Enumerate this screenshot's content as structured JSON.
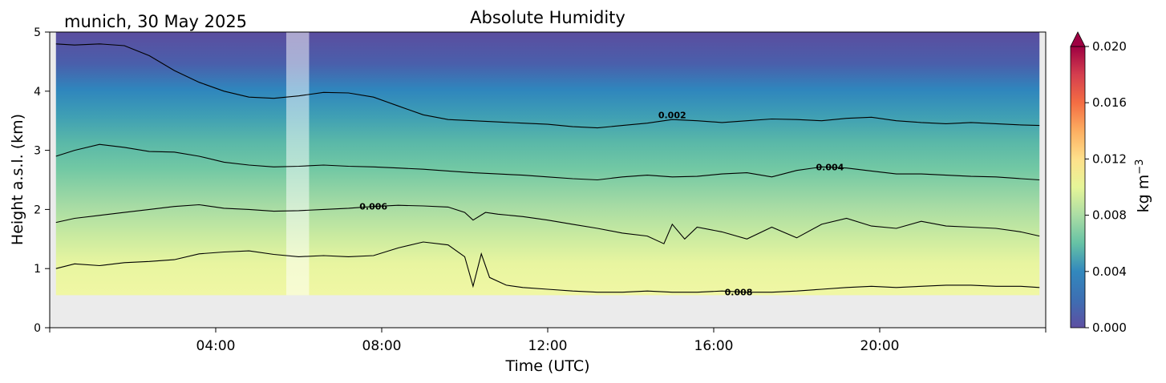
{
  "chart_data": {
    "type": "heatmap",
    "title": "Absolute Humidity",
    "subtitle": "munich, 30 May 2025",
    "xlabel": "Time (UTC)",
    "ylabel": "Height a.s.l. (km)",
    "colorbar_label": "kg m",
    "colorbar_label_exponent": "−3",
    "xlim": [
      0,
      24
    ],
    "ylim": [
      0,
      5
    ],
    "xticks": [
      {
        "value": 4,
        "label": "04:00"
      },
      {
        "value": 8,
        "label": "08:00"
      },
      {
        "value": 12,
        "label": "12:00"
      },
      {
        "value": 16,
        "label": "16:00"
      },
      {
        "value": 20,
        "label": "20:00"
      }
    ],
    "yticks": [
      {
        "value": 0,
        "label": "0"
      },
      {
        "value": 1,
        "label": "1"
      },
      {
        "value": 2,
        "label": "2"
      },
      {
        "value": 3,
        "label": "3"
      },
      {
        "value": 4,
        "label": "4"
      },
      {
        "value": 5,
        "label": "5"
      }
    ],
    "colorbar": {
      "range": [
        0,
        0.02
      ],
      "extend": "max",
      "ticks": [
        {
          "value": 0.0,
          "label": "0.000"
        },
        {
          "value": 0.004,
          "label": "0.004"
        },
        {
          "value": 0.008,
          "label": "0.008"
        },
        {
          "value": 0.012,
          "label": "0.012"
        },
        {
          "value": 0.016,
          "label": "0.016"
        },
        {
          "value": 0.02,
          "label": "0.020"
        }
      ]
    },
    "data_extent": {
      "time": [
        0.15,
        23.85
      ],
      "height_km": [
        0.55,
        5.0
      ]
    },
    "missing_data_gap": {
      "time": [
        5.7,
        6.25
      ]
    },
    "contours": [
      {
        "level": 0.002,
        "label": "0.002",
        "label_at": [
          15.0,
          3.6
        ],
        "points": [
          [
            0.15,
            4.8
          ],
          [
            0.6,
            4.78
          ],
          [
            1.2,
            4.8
          ],
          [
            1.8,
            4.77
          ],
          [
            2.4,
            4.6
          ],
          [
            3.0,
            4.35
          ],
          [
            3.6,
            4.15
          ],
          [
            4.2,
            4.0
          ],
          [
            4.8,
            3.9
          ],
          [
            5.4,
            3.88
          ],
          [
            6.0,
            3.92
          ],
          [
            6.6,
            3.98
          ],
          [
            7.2,
            3.97
          ],
          [
            7.8,
            3.9
          ],
          [
            8.4,
            3.75
          ],
          [
            9.0,
            3.6
          ],
          [
            9.6,
            3.52
          ],
          [
            10.2,
            3.5
          ],
          [
            10.8,
            3.48
          ],
          [
            11.4,
            3.46
          ],
          [
            12.0,
            3.44
          ],
          [
            12.6,
            3.4
          ],
          [
            13.2,
            3.38
          ],
          [
            13.8,
            3.42
          ],
          [
            14.4,
            3.46
          ],
          [
            15.0,
            3.52
          ],
          [
            15.6,
            3.5
          ],
          [
            16.2,
            3.47
          ],
          [
            16.8,
            3.5
          ],
          [
            17.4,
            3.53
          ],
          [
            18.0,
            3.52
          ],
          [
            18.6,
            3.5
          ],
          [
            19.2,
            3.54
          ],
          [
            19.8,
            3.56
          ],
          [
            20.4,
            3.5
          ],
          [
            21.0,
            3.47
          ],
          [
            21.6,
            3.45
          ],
          [
            22.2,
            3.47
          ],
          [
            22.8,
            3.45
          ],
          [
            23.4,
            3.43
          ],
          [
            23.85,
            3.42
          ]
        ]
      },
      {
        "level": 0.004,
        "label": "0.004",
        "label_at": [
          18.8,
          2.72
        ],
        "points": [
          [
            0.15,
            2.9
          ],
          [
            0.6,
            3.0
          ],
          [
            1.2,
            3.1
          ],
          [
            1.8,
            3.05
          ],
          [
            2.4,
            2.98
          ],
          [
            3.0,
            2.97
          ],
          [
            3.6,
            2.9
          ],
          [
            4.2,
            2.8
          ],
          [
            4.8,
            2.75
          ],
          [
            5.4,
            2.72
          ],
          [
            6.0,
            2.73
          ],
          [
            6.6,
            2.75
          ],
          [
            7.2,
            2.73
          ],
          [
            7.8,
            2.72
          ],
          [
            8.4,
            2.7
          ],
          [
            9.0,
            2.68
          ],
          [
            9.6,
            2.65
          ],
          [
            10.2,
            2.62
          ],
          [
            10.8,
            2.6
          ],
          [
            11.4,
            2.58
          ],
          [
            12.0,
            2.55
          ],
          [
            12.6,
            2.52
          ],
          [
            13.2,
            2.5
          ],
          [
            13.8,
            2.55
          ],
          [
            14.4,
            2.58
          ],
          [
            15.0,
            2.55
          ],
          [
            15.6,
            2.56
          ],
          [
            16.2,
            2.6
          ],
          [
            16.8,
            2.62
          ],
          [
            17.4,
            2.55
          ],
          [
            18.0,
            2.66
          ],
          [
            18.6,
            2.72
          ],
          [
            19.2,
            2.7
          ],
          [
            19.8,
            2.65
          ],
          [
            20.4,
            2.6
          ],
          [
            21.0,
            2.6
          ],
          [
            21.6,
            2.58
          ],
          [
            22.2,
            2.56
          ],
          [
            22.8,
            2.55
          ],
          [
            23.4,
            2.52
          ],
          [
            23.85,
            2.5
          ]
        ]
      },
      {
        "level": 0.006,
        "label": "0.006",
        "label_at": [
          7.8,
          2.05
        ],
        "points": [
          [
            0.15,
            1.78
          ],
          [
            0.6,
            1.85
          ],
          [
            1.2,
            1.9
          ],
          [
            1.8,
            1.95
          ],
          [
            2.4,
            2.0
          ],
          [
            3.0,
            2.05
          ],
          [
            3.6,
            2.08
          ],
          [
            4.2,
            2.02
          ],
          [
            4.8,
            2.0
          ],
          [
            5.4,
            1.97
          ],
          [
            6.0,
            1.98
          ],
          [
            6.6,
            2.0
          ],
          [
            7.2,
            2.02
          ],
          [
            7.8,
            2.05
          ],
          [
            8.4,
            2.07
          ],
          [
            9.0,
            2.06
          ],
          [
            9.6,
            2.04
          ],
          [
            10.0,
            1.95
          ],
          [
            10.2,
            1.82
          ],
          [
            10.5,
            1.95
          ],
          [
            10.8,
            1.92
          ],
          [
            11.4,
            1.88
          ],
          [
            12.0,
            1.82
          ],
          [
            12.6,
            1.75
          ],
          [
            13.2,
            1.68
          ],
          [
            13.8,
            1.6
          ],
          [
            14.4,
            1.55
          ],
          [
            14.8,
            1.42
          ],
          [
            15.0,
            1.75
          ],
          [
            15.3,
            1.5
          ],
          [
            15.6,
            1.7
          ],
          [
            16.2,
            1.62
          ],
          [
            16.8,
            1.5
          ],
          [
            17.4,
            1.7
          ],
          [
            18.0,
            1.52
          ],
          [
            18.6,
            1.75
          ],
          [
            19.2,
            1.85
          ],
          [
            19.8,
            1.72
          ],
          [
            20.4,
            1.68
          ],
          [
            21.0,
            1.8
          ],
          [
            21.6,
            1.72
          ],
          [
            22.2,
            1.7
          ],
          [
            22.8,
            1.68
          ],
          [
            23.4,
            1.62
          ],
          [
            23.85,
            1.55
          ]
        ]
      },
      {
        "level": 0.008,
        "label": "0.008",
        "label_at": [
          16.6,
          0.6
        ],
        "points": [
          [
            0.15,
            1.0
          ],
          [
            0.6,
            1.08
          ],
          [
            1.2,
            1.05
          ],
          [
            1.8,
            1.1
          ],
          [
            2.4,
            1.12
          ],
          [
            3.0,
            1.15
          ],
          [
            3.6,
            1.25
          ],
          [
            4.2,
            1.28
          ],
          [
            4.8,
            1.3
          ],
          [
            5.4,
            1.24
          ],
          [
            6.0,
            1.2
          ],
          [
            6.6,
            1.22
          ],
          [
            7.2,
            1.2
          ],
          [
            7.8,
            1.22
          ],
          [
            8.4,
            1.35
          ],
          [
            9.0,
            1.45
          ],
          [
            9.6,
            1.4
          ],
          [
            10.0,
            1.2
          ],
          [
            10.2,
            0.7
          ],
          [
            10.4,
            1.25
          ],
          [
            10.6,
            0.85
          ],
          [
            11.0,
            0.72
          ],
          [
            11.4,
            0.68
          ],
          [
            12.0,
            0.65
          ],
          [
            12.6,
            0.62
          ],
          [
            13.2,
            0.6
          ],
          [
            13.8,
            0.6
          ],
          [
            14.4,
            0.62
          ],
          [
            15.0,
            0.6
          ],
          [
            15.6,
            0.6
          ],
          [
            16.2,
            0.62
          ],
          [
            16.8,
            0.6
          ],
          [
            17.4,
            0.6
          ],
          [
            18.0,
            0.62
          ],
          [
            18.6,
            0.65
          ],
          [
            19.2,
            0.68
          ],
          [
            19.8,
            0.7
          ],
          [
            20.4,
            0.68
          ],
          [
            21.0,
            0.7
          ],
          [
            21.6,
            0.72
          ],
          [
            22.2,
            0.72
          ],
          [
            22.8,
            0.7
          ],
          [
            23.4,
            0.7
          ],
          [
            23.85,
            0.68
          ]
        ]
      }
    ]
  }
}
